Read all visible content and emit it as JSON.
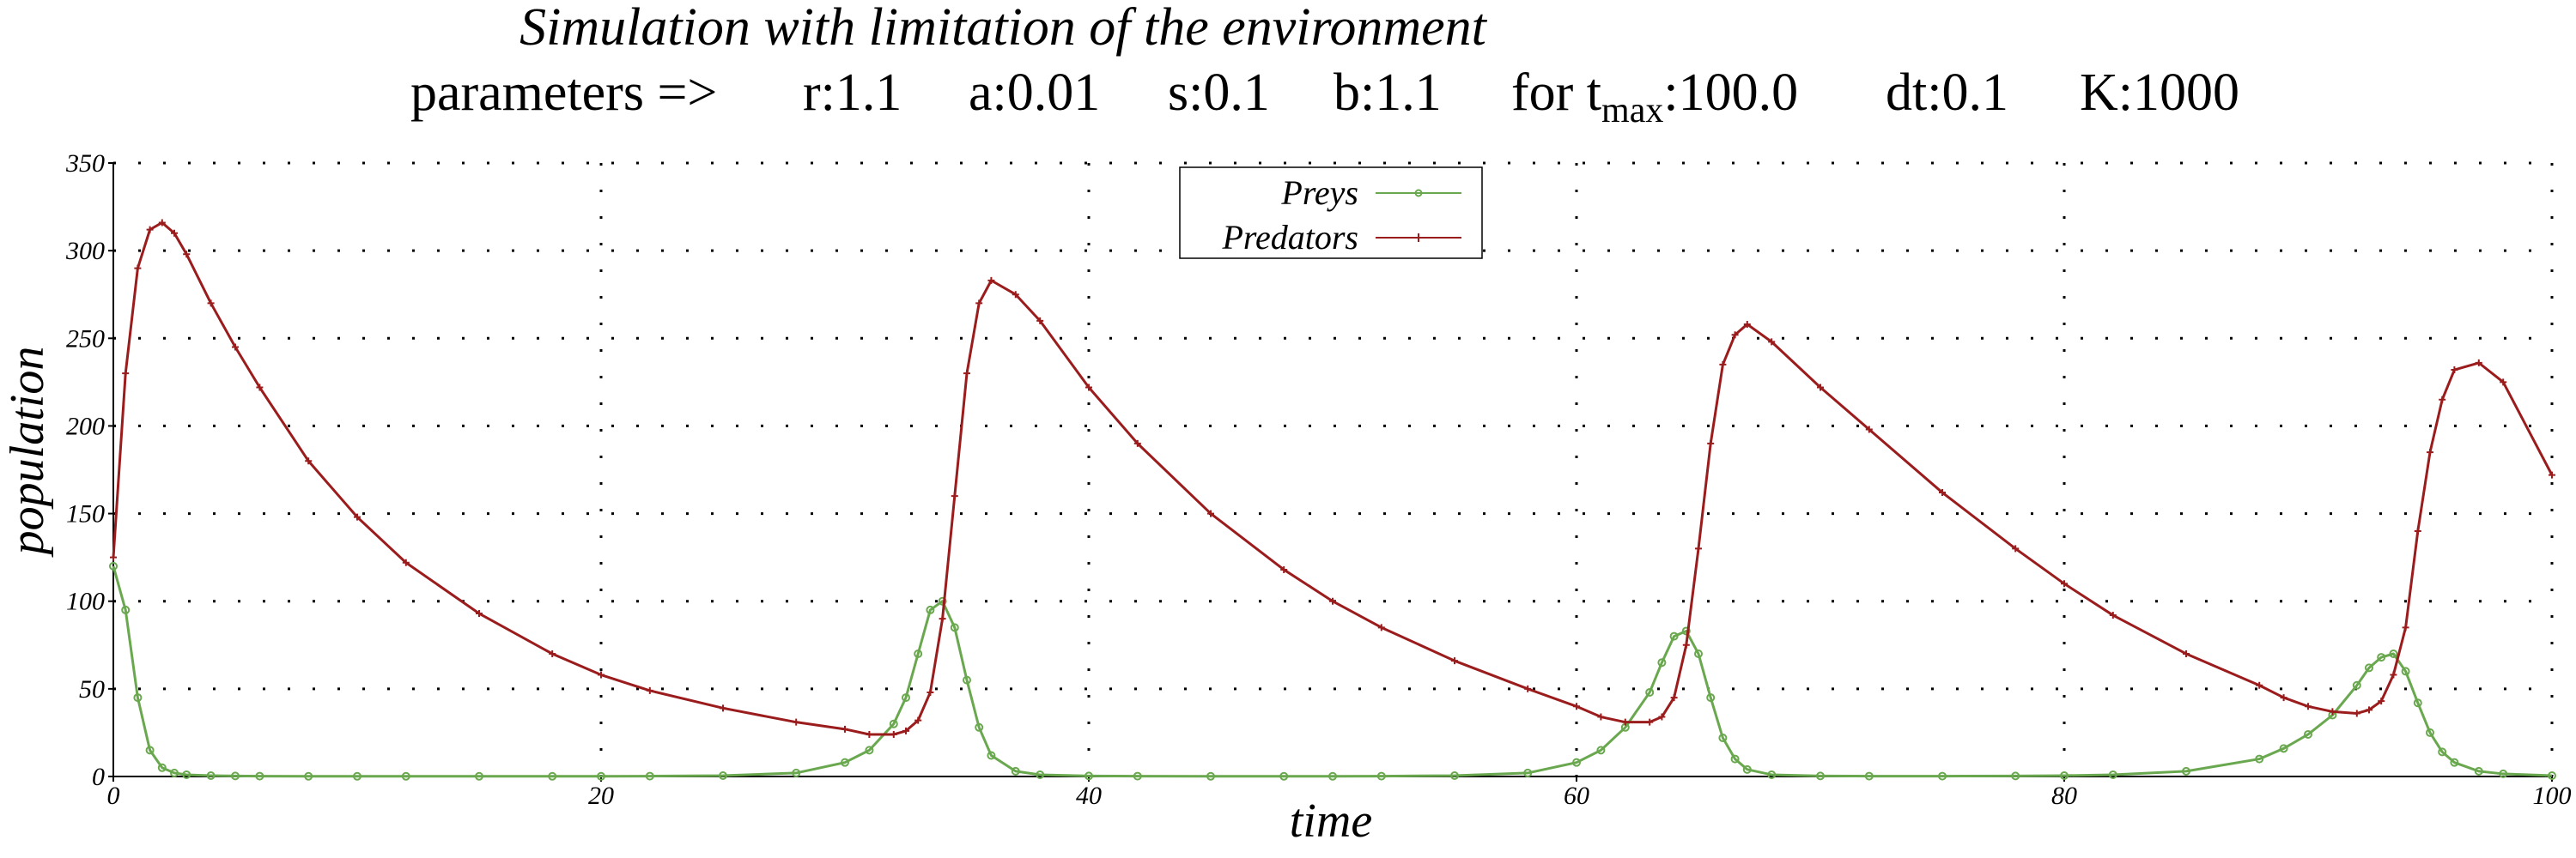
{
  "chart_data": {
    "type": "line",
    "title": "Simulation with limitation of the environment",
    "subtitle": {
      "prefix": "parameters =>",
      "r": "r:1.1",
      "a": "a:0.01",
      "s": "s:0.1",
      "b": "b:1.1",
      "tmax_pre": "for t",
      "tmax_sub": "max",
      "tmax_val": ":100.0",
      "dt": "dt:0.1",
      "K": "K:1000"
    },
    "xlabel": "time",
    "ylabel": "population",
    "xlim": [
      0,
      100
    ],
    "ylim": [
      0,
      350
    ],
    "x_ticks": [
      "0",
      "20",
      "40",
      "60",
      "80",
      "100"
    ],
    "y_ticks": [
      "0",
      "50",
      "100",
      "150",
      "200",
      "250",
      "300",
      "350"
    ],
    "grid": true,
    "legend_position": "top-center",
    "x": [
      0,
      0.5,
      1,
      1.5,
      2,
      2.5,
      3,
      4,
      5,
      6,
      8,
      10,
      12,
      15,
      18,
      20,
      22,
      25,
      28,
      30,
      31,
      32,
      32.5,
      33,
      33.5,
      34,
      34.5,
      35,
      35.5,
      36,
      37,
      38,
      40,
      42,
      45,
      48,
      50,
      52,
      55,
      58,
      60,
      61,
      62,
      63,
      63.5,
      64,
      64.5,
      65,
      65.5,
      66,
      66.5,
      67,
      68,
      70,
      72,
      75,
      78,
      80,
      82,
      85,
      88,
      89,
      90,
      91,
      92,
      92.5,
      93,
      93.5,
      94,
      94.5,
      95,
      95.5,
      96,
      97,
      98,
      100
    ],
    "series": [
      {
        "name": "Preys",
        "color": "#6aa84f",
        "marker": "circle",
        "values": [
          120,
          95,
          45,
          15,
          5,
          2,
          1,
          0.5,
          0.3,
          0.2,
          0.1,
          0.1,
          0.1,
          0.1,
          0.1,
          0.1,
          0.2,
          0.5,
          2,
          8,
          15,
          30,
          45,
          70,
          95,
          100,
          85,
          55,
          28,
          12,
          3,
          1,
          0.3,
          0.2,
          0.1,
          0.1,
          0.1,
          0.2,
          0.5,
          2,
          8,
          15,
          28,
          48,
          65,
          80,
          83,
          70,
          45,
          22,
          10,
          4,
          1,
          0.3,
          0.2,
          0.2,
          0.3,
          0.5,
          1,
          3,
          10,
          16,
          24,
          35,
          52,
          62,
          68,
          70,
          60,
          42,
          25,
          14,
          8,
          3,
          1.5,
          0.5
        ]
      },
      {
        "name": "Predators",
        "color": "#9b1c1c",
        "marker": "plus",
        "values": [
          125,
          230,
          290,
          312,
          316,
          310,
          298,
          270,
          245,
          222,
          180,
          148,
          122,
          93,
          70,
          58,
          49,
          39,
          31,
          27,
          24,
          24,
          26,
          32,
          48,
          90,
          160,
          230,
          270,
          283,
          275,
          260,
          222,
          190,
          150,
          118,
          100,
          85,
          66,
          50,
          40,
          34,
          31,
          31,
          34,
          45,
          75,
          130,
          190,
          235,
          252,
          258,
          248,
          222,
          198,
          162,
          130,
          110,
          92,
          70,
          52,
          45,
          40,
          37,
          36,
          38,
          43,
          58,
          85,
          140,
          185,
          215,
          232,
          236,
          225,
          172
        ]
      }
    ]
  }
}
